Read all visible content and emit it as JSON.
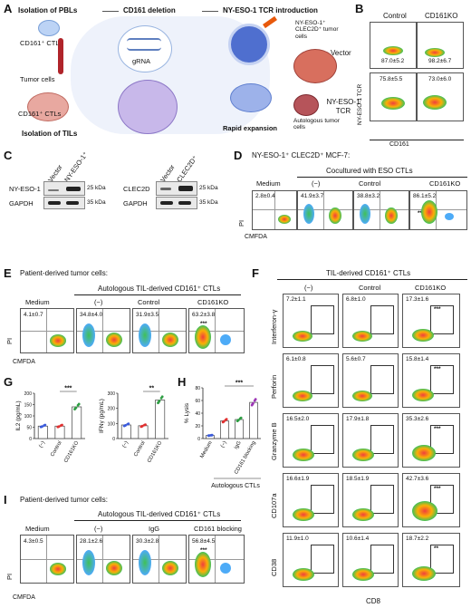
{
  "panels": {
    "A": {
      "letter": "A",
      "step1": "Isolation of PBLs",
      "step2": "CD161 deletion",
      "step3": "NY-ESO-1 TCR introduction",
      "cd161_ctls_top": "CD161⁺ CTLs",
      "tumor_cells": "Tumor cells",
      "cd161_ctls_bottom": "CD161⁺ CTLs",
      "isolation_tils": "Isolation of TILs",
      "grna": "gRNA",
      "nyeso_tumor": "NY-ESO-1⁺ CLEC2D⁺ tumor cells",
      "rapid_expansion": "Rapid expansion",
      "autologous_tumor": "Autologous tumor cells"
    },
    "B": {
      "letter": "B",
      "col1": "Control",
      "col2": "CD161KO",
      "row1": "Vector",
      "row2": "NY-ESO-1 TCR",
      "yaxis": "NY-ESO-1 TCR",
      "xaxis": "CD161",
      "vals": [
        "87.0±5.2",
        "98.2±6.7",
        "75.8±5.5",
        "73.0±6.0"
      ]
    },
    "C": {
      "letter": "C",
      "left_cols": [
        "Vector",
        "NY-ESO-1⁺"
      ],
      "right_cols": [
        "Vector",
        "CLEC2D⁺"
      ],
      "rows_left": [
        "NY-ESO-1",
        "GAPDH"
      ],
      "rows_right": [
        "CLEC2D",
        "GAPDH"
      ],
      "kda": [
        "25 kDa",
        "35 kDa",
        "25 kDa",
        "35 kDa"
      ]
    },
    "D": {
      "letter": "D",
      "title": "NY-ESO-1⁺ CLEC2D⁺ MCF-7:",
      "subtitle": "Cocultured with ESO CTLs",
      "cols": [
        "Medium",
        "(−)",
        "Control",
        "CD161KO"
      ],
      "vals": [
        "2.8±0.4",
        "41.9±3.7",
        "38.8±3.2",
        "86.1±5.2"
      ],
      "stars": "***",
      "yaxis": "PI",
      "xaxis": "CMFDA"
    },
    "E": {
      "letter": "E",
      "title": "Patient-derived tumor cells:",
      "subtitle": "Autologous TIL-derived CD161⁺ CTLs",
      "cols": [
        "Medium",
        "(−)",
        "Control",
        "CD161KO"
      ],
      "vals": [
        "4.1±0.7",
        "34.8±4.0",
        "31.9±3.5",
        "63.2±3.8"
      ],
      "stars": "***",
      "yaxis": "PI",
      "xaxis": "CMFDA"
    },
    "F": {
      "letter": "F",
      "title": "TIL-derived CD161⁺ CTLs",
      "cols": [
        "(−)",
        "Control",
        "CD161KO"
      ],
      "rows": [
        "Interferon-γ",
        "Perforin",
        "Granzyme B",
        "CD107a",
        "CD38"
      ],
      "vals": [
        [
          "7.2±1.1",
          "6.8±1.0",
          "17.3±1.6"
        ],
        [
          "6.1±0.8",
          "5.6±0.7",
          "15.8±1.4"
        ],
        [
          "16.5±2.0",
          "17.9±1.8",
          "35.3±2.6"
        ],
        [
          "16.6±1.9",
          "18.5±1.9",
          "42.7±3.6"
        ],
        [
          "11.9±1.0",
          "10.6±1.4",
          "18.7±2.2"
        ]
      ],
      "stars": [
        "***",
        "***",
        "***",
        "***",
        "**"
      ],
      "xaxis": "CD8"
    },
    "G": {
      "letter": "G",
      "left_ylabel": "IL2 (pg/mL)",
      "right_ylabel": "IFNγ (pg/mL)",
      "cats": [
        "(−)",
        "Control",
        "CD161KO"
      ],
      "left_stars": "***",
      "right_stars": "**",
      "left_ticks": [
        "0",
        "50",
        "100",
        "150",
        "200"
      ],
      "right_ticks": [
        "0",
        "100",
        "200",
        "300"
      ]
    },
    "H": {
      "letter": "H",
      "ylabel": "% Lysis",
      "cats": [
        "Medium",
        "(−)",
        "IgG",
        "CD161 blocking"
      ],
      "stars": "***",
      "ticks": [
        "0",
        "20",
        "40",
        "60",
        "80"
      ],
      "xfoot": "Autologous CTLs"
    },
    "I": {
      "letter": "I",
      "title": "Patient-derived tumor cells:",
      "subtitle": "Autologous TIL-derived CD161⁺ CTLs",
      "cols": [
        "Medium",
        "(−)",
        "IgG",
        "CD161 blocking"
      ],
      "vals": [
        "4.3±0.5",
        "28.1±2.6",
        "30.3±2.8",
        "56.8±4.5"
      ],
      "stars": "***",
      "yaxis": "PI",
      "xaxis": "CMFDA"
    }
  },
  "colors": {
    "wt": "#3b5bdb",
    "control": "#e03131",
    "ko": "#2f9e44",
    "blocking": "#9c36b5"
  },
  "chart_data": [
    {
      "type": "bar",
      "ylabel": "IL2 (pg/mL)",
      "categories": [
        "(−)",
        "Control",
        "CD161KO"
      ],
      "values": [
        55,
        55,
        140
      ],
      "ylim": [
        0,
        200
      ]
    },
    {
      "type": "bar",
      "ylabel": "IFNγ (pg/mL)",
      "categories": [
        "(−)",
        "Control",
        "CD161KO"
      ],
      "values": [
        90,
        85,
        255
      ],
      "ylim": [
        0,
        300
      ]
    },
    {
      "type": "bar",
      "ylabel": "% Lysis",
      "categories": [
        "Medium",
        "(−)",
        "IgG",
        "CD161 blocking"
      ],
      "values": [
        5,
        28,
        30,
        57
      ],
      "ylim": [
        0,
        80
      ]
    }
  ]
}
